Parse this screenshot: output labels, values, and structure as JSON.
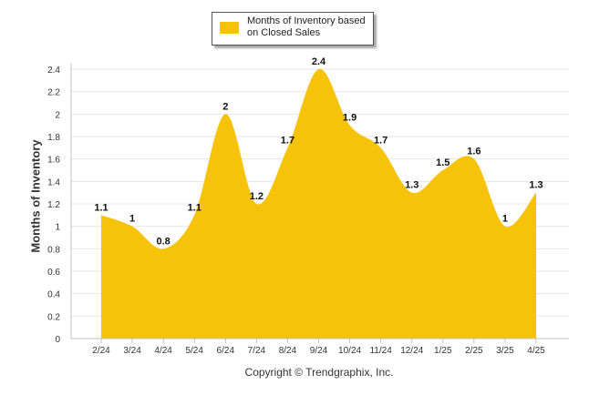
{
  "chart_data": {
    "type": "area",
    "categories": [
      "2/24",
      "3/24",
      "4/24",
      "5/24",
      "6/24",
      "7/24",
      "8/24",
      "9/24",
      "10/24",
      "11/24",
      "12/24",
      "1/25",
      "2/25",
      "3/25",
      "4/25"
    ],
    "series": [
      {
        "name": "Months of Inventory based on Closed Sales",
        "values": [
          1.1,
          1,
          0.8,
          1.1,
          2,
          1.2,
          1.7,
          2.4,
          1.9,
          1.7,
          1.3,
          1.5,
          1.6,
          1,
          1.3
        ],
        "labels": [
          "1.1",
          "1",
          "0.8",
          "1.1",
          "2",
          "1.2",
          "1.7",
          "2.4",
          "1.9",
          "1.7",
          "1.3",
          "1.5",
          "1.6",
          "1",
          "1.3"
        ],
        "color": "#F7C30A"
      }
    ],
    "ylabel": "Months of Inventory",
    "ylim": [
      0,
      2.4
    ],
    "yticks": [
      "0",
      "0.2",
      "0.4",
      "0.6",
      "0.8",
      "1",
      "1.2",
      "1.4",
      "1.6",
      "1.8",
      "2",
      "2.2",
      "2.4"
    ],
    "grid": true,
    "legend_position": "top-center"
  },
  "legend": {
    "label": "Months of Inventory based on Closed Sales"
  },
  "footer": {
    "copyright": "Copyright © Trendgraphix, Inc."
  },
  "colors": {
    "series": "#F7C30A",
    "gridline": "#e6e6e6",
    "axis": "#c0c0c0"
  }
}
